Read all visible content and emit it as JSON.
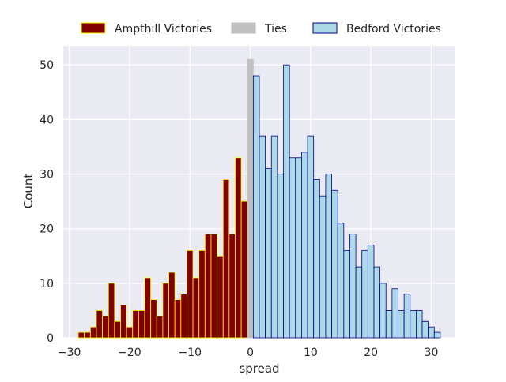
{
  "chart_data": {
    "type": "bar",
    "title": "",
    "xlabel": "spread",
    "ylabel": "Count",
    "xlim": [
      -31,
      34
    ],
    "ylim": [
      0,
      53.5
    ],
    "x_ticks": [
      -30,
      -20,
      -10,
      0,
      10,
      20,
      30
    ],
    "x_tick_labels": [
      "−30",
      "−20",
      "−10",
      "0",
      "10",
      "20",
      "30"
    ],
    "y_ticks": [
      0,
      10,
      20,
      30,
      40,
      50
    ],
    "y_tick_labels": [
      "0",
      "10",
      "20",
      "30",
      "40",
      "50"
    ],
    "grid": true,
    "bin_width": 1,
    "legend_position": "top-center, above plot",
    "legend": [
      {
        "label": "Ampthill Victories",
        "fill": "#800000",
        "edge": "#ffff00"
      },
      {
        "label": "Ties",
        "fill": "#c0c0c0",
        "edge": "#c0c0c0"
      },
      {
        "label": "Bedford Victories",
        "fill": "#add8e6",
        "edge": "#00008b"
      }
    ],
    "series": [
      {
        "name": "Ampthill Victories",
        "fill": "#800000",
        "edge": "#ffff00",
        "x": [
          -28,
          -27,
          -26,
          -25,
          -24,
          -23,
          -22,
          -21,
          -20,
          -19,
          -18,
          -17,
          -16,
          -15,
          -14,
          -13,
          -12,
          -11,
          -10,
          -9,
          -8,
          -7,
          -6,
          -5,
          -4,
          -3,
          -2,
          -1
        ],
        "values": [
          1,
          1,
          2,
          5,
          4,
          10,
          3,
          6,
          2,
          5,
          5,
          11,
          7,
          4,
          10,
          12,
          7,
          8,
          16,
          11,
          16,
          19,
          19,
          15,
          29,
          19,
          33,
          25
        ]
      },
      {
        "name": "Ties",
        "fill": "#c0c0c0",
        "edge": "#c0c0c0",
        "x": [
          0
        ],
        "values": [
          51
        ]
      },
      {
        "name": "Bedford Victories",
        "fill": "#add8e6",
        "edge": "#00008b",
        "x": [
          1,
          2,
          3,
          4,
          5,
          6,
          7,
          8,
          9,
          10,
          11,
          12,
          13,
          14,
          15,
          16,
          17,
          18,
          19,
          20,
          21,
          22,
          23,
          24,
          25,
          26,
          27,
          28,
          29,
          30,
          31
        ],
        "values": [
          48,
          37,
          31,
          37,
          30,
          50,
          33,
          33,
          34,
          37,
          29,
          26,
          30,
          27,
          21,
          16,
          19,
          13,
          16,
          17,
          13,
          10,
          5,
          9,
          5,
          8,
          5,
          5,
          3,
          2,
          1
        ]
      }
    ]
  }
}
